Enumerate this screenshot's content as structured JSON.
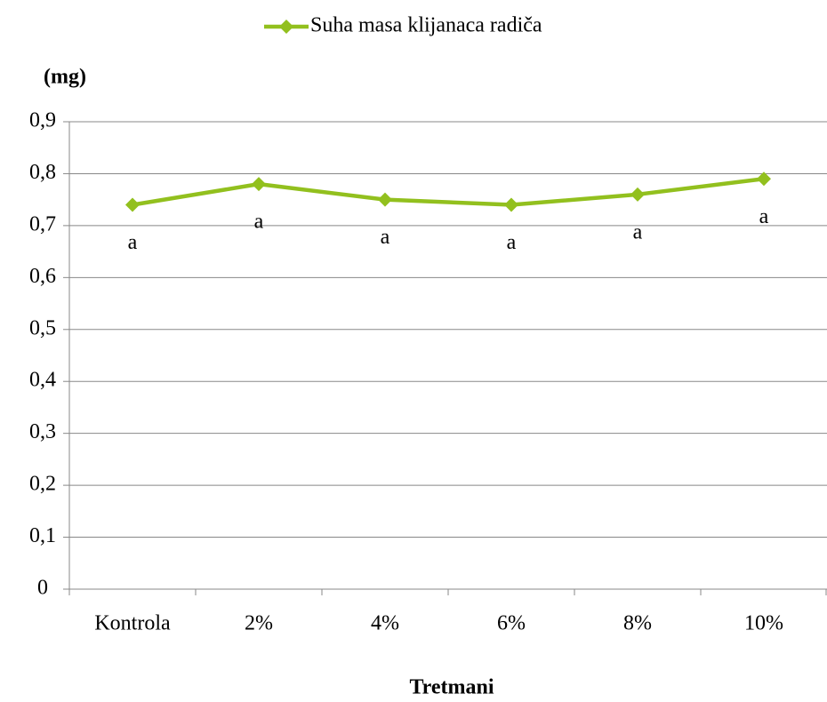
{
  "chart_data": {
    "type": "line",
    "y_label": "(mg)",
    "x_label": "Tretmani",
    "categories": [
      "Kontrola",
      "2%",
      "4%",
      "6%",
      "8%",
      "10%"
    ],
    "series": [
      {
        "name": "Suha masa klijanaca radiča",
        "color": "#92c01e",
        "values": [
          0.74,
          0.78,
          0.75,
          0.74,
          0.76,
          0.79
        ]
      }
    ],
    "annotations": [
      "a",
      "a",
      "a",
      "a",
      "a",
      "a"
    ],
    "ylim": [
      0,
      0.9
    ],
    "yticks": [
      0,
      {
        "value": 0.1,
        "label": "0,1"
      },
      {
        "value": 0.2,
        "label": "0,2"
      },
      {
        "value": 0.3,
        "label": "0,3"
      },
      {
        "value": 0.4,
        "label": "0,4"
      },
      {
        "value": 0.5,
        "label": "0,5"
      },
      {
        "value": 0.6,
        "label": "0,6"
      },
      {
        "value": 0.7,
        "label": "0,7"
      },
      {
        "value": 0.8,
        "label": "0,8"
      },
      {
        "value": 0.9,
        "label": "0,9"
      }
    ],
    "grid": true,
    "legend": "top"
  }
}
